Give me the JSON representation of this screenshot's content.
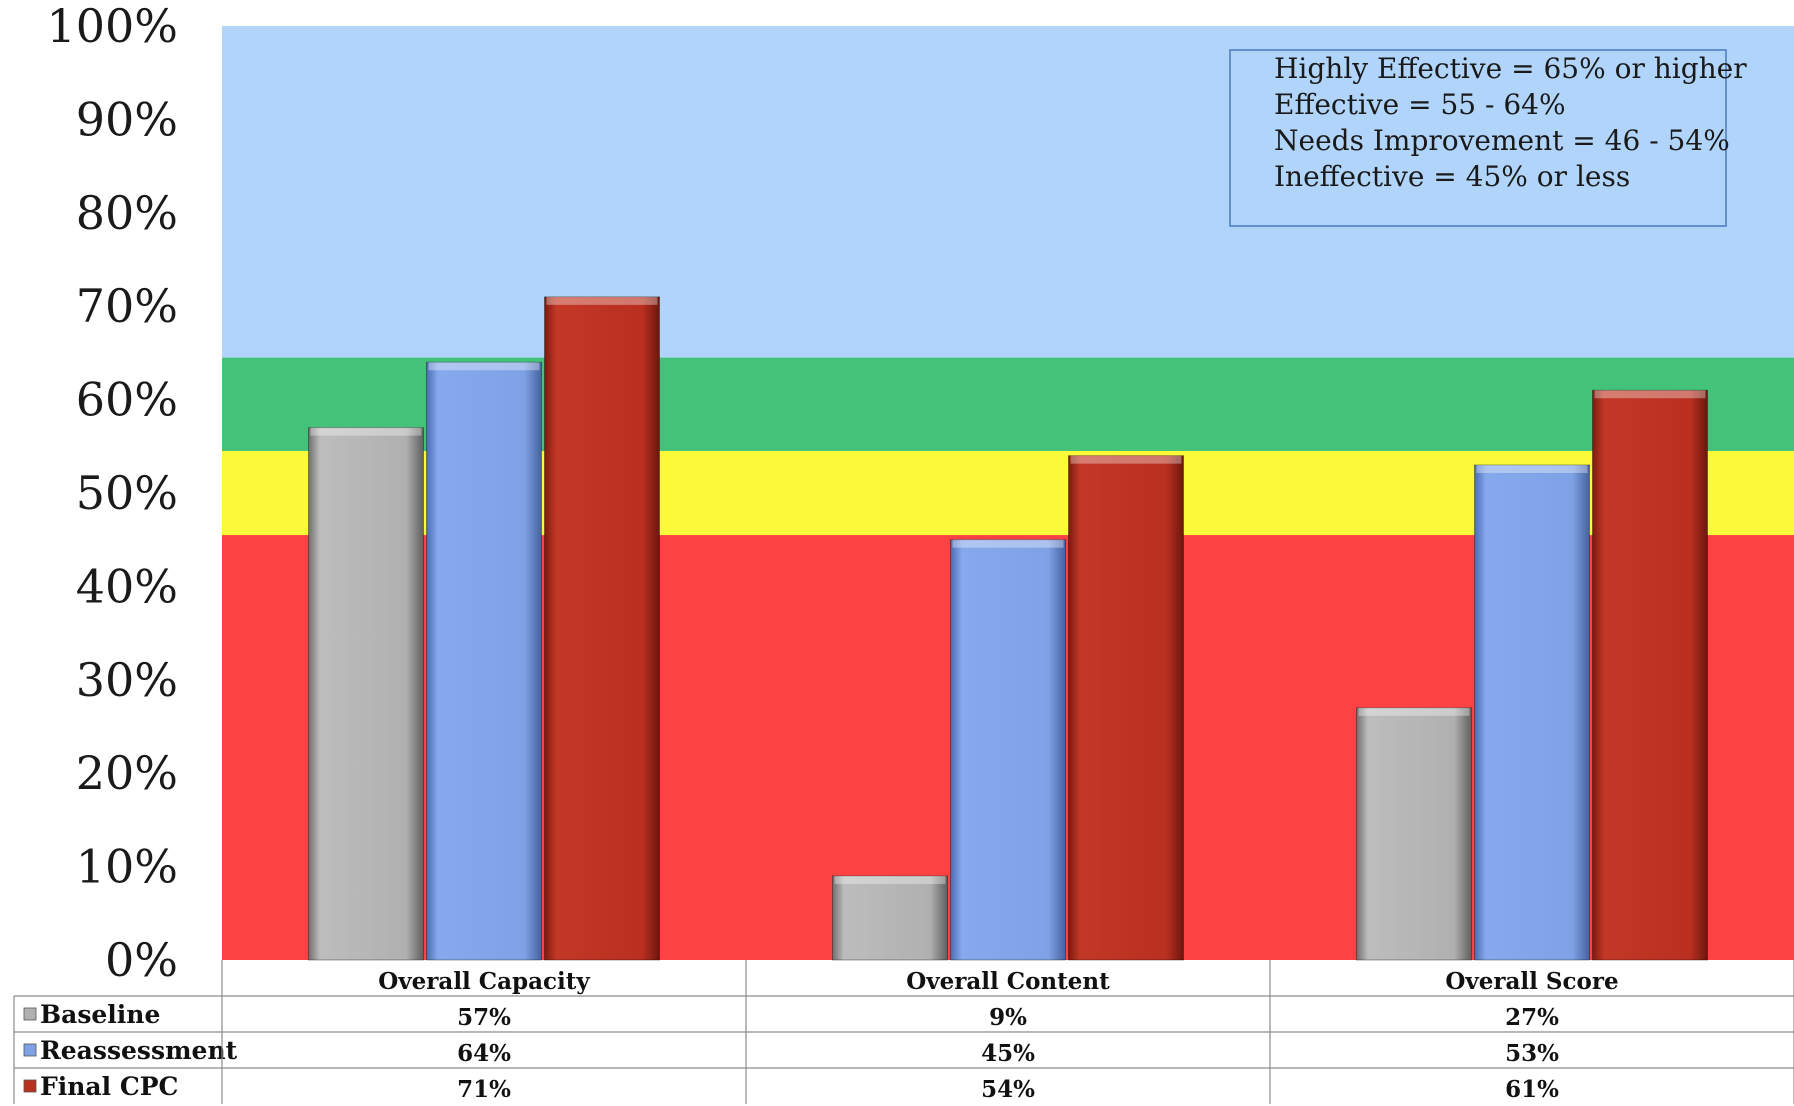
{
  "chart_data": {
    "type": "bar",
    "title": "",
    "xlabel": "",
    "ylabel": "",
    "ylim": [
      0,
      100
    ],
    "yticks": [
      "0%",
      "10%",
      "20%",
      "30%",
      "40%",
      "50%",
      "60%",
      "70%",
      "80%",
      "90%",
      "100%"
    ],
    "categories": [
      "Overall Capacity",
      "Overall Content",
      "Overall Score"
    ],
    "series": [
      {
        "name": "Baseline",
        "values": [
          57,
          9,
          27
        ],
        "labels": [
          "57%",
          "9%",
          "27%"
        ],
        "color": "#b0b0b0"
      },
      {
        "name": "Reassessment",
        "values": [
          64,
          45,
          53
        ],
        "labels": [
          "64%",
          "45%",
          "53%"
        ],
        "color": "#7fa2e6"
      },
      {
        "name": "Final CPC",
        "values": [
          71,
          54,
          61
        ],
        "labels": [
          "71%",
          "54%",
          "61%"
        ],
        "color": "#b93020"
      }
    ],
    "bands": [
      {
        "from": 0,
        "to": 45.5,
        "color": "#fc4242"
      },
      {
        "from": 45.5,
        "to": 54.5,
        "color": "#fafa3a"
      },
      {
        "from": 54.5,
        "to": 64.5,
        "color": "#44c27a"
      },
      {
        "from": 64.5,
        "to": 100,
        "color": "#b0d4fa"
      }
    ],
    "legend_box": {
      "position": "top-right",
      "lines": [
        "Highly Effective = 65% or higher",
        "Effective = 55 - 64%",
        "Needs Improvement = 46 - 54%",
        "Ineffective = 45% or less"
      ]
    },
    "data_table": true,
    "grid": false
  }
}
